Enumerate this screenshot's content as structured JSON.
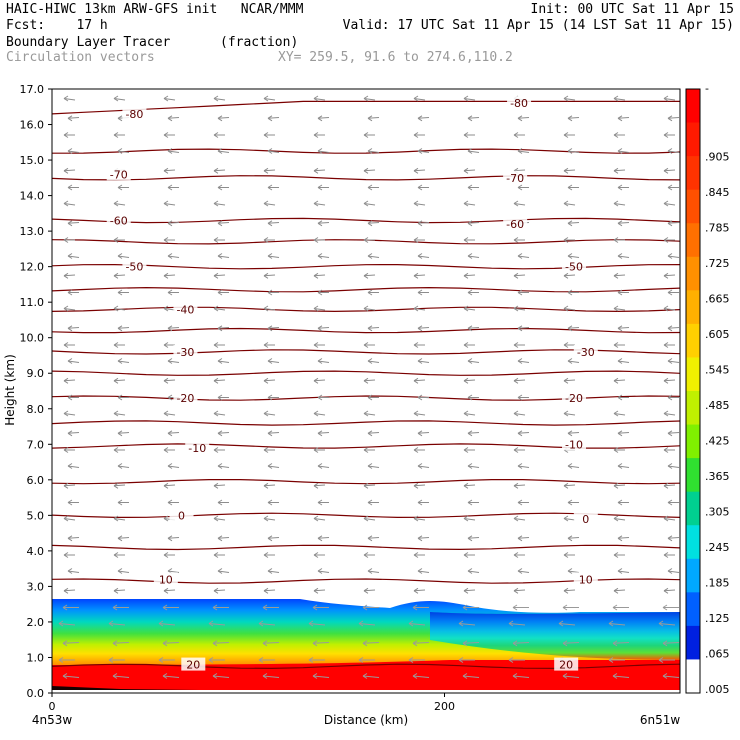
{
  "header": {
    "line1_left": "HAIC-HIWC 13km ARW-GFS init   NCAR/MMM",
    "line1_right": "Init: 00 UTC Sat 11 Apr 15",
    "line2_left": "Fcst:    17 h",
    "line2_right": "Valid: 17 UTC Sat 11 Apr 15 (14 LST Sat 11 Apr 15)",
    "field_name": "Boundary Layer Tracer",
    "field_units": "(fraction)",
    "vector_label": "Circulation vectors",
    "xy_label": "XY= 259.5, 91.6 to 274.6,110.2"
  },
  "chart_data": {
    "type": "heatmap",
    "ylabel": "Height (km)",
    "xlabel": "Distance (km)",
    "x_left_label": "4n53w",
    "x_right_label": "6n51w",
    "xlim": [
      0,
      320
    ],
    "ylim": [
      0,
      17
    ],
    "xticks": [
      "0",
      "200"
    ],
    "xtick_values": [
      0,
      200
    ],
    "yticks": [
      "0.0",
      "1.0",
      "2.0",
      "3.0",
      "4.0",
      "5.0",
      "6.0",
      "7.0",
      "8.0",
      "9.0",
      "10.0",
      "11.0",
      "12.0",
      "13.0",
      "14.0",
      "15.0",
      "16.0",
      "17.0"
    ],
    "colorbar": {
      "labels": [
        "-",
        ".905",
        ".845",
        ".785",
        ".725",
        ".665",
        ".605",
        ".545",
        ".485",
        ".425",
        ".365",
        ".305",
        ".245",
        ".185",
        ".125",
        ".065",
        ".005"
      ],
      "colors": [
        "#ff0000",
        "#ff1a00",
        "#ff3300",
        "#ff5000",
        "#ff7000",
        "#ff9000",
        "#ffb000",
        "#ffd000",
        "#f0f000",
        "#c0f000",
        "#80f000",
        "#30e030",
        "#00d090",
        "#00e0e0",
        "#00a8ff",
        "#0060ff",
        "#0020e0",
        "#ffffff"
      ]
    },
    "contour_labels": [
      {
        "text": "-80",
        "x": 42,
        "y": 16.3
      },
      {
        "text": "-80",
        "x": 238,
        "y": 16.6
      },
      {
        "text": "-70",
        "x": 34,
        "y": 14.6
      },
      {
        "text": "-70",
        "x": 236,
        "y": 14.5
      },
      {
        "text": "-60",
        "x": 34,
        "y": 13.3
      },
      {
        "text": "-60",
        "x": 236,
        "y": 13.2
      },
      {
        "text": "-50",
        "x": 42,
        "y": 12.0
      },
      {
        "text": "-50",
        "x": 266,
        "y": 12.0
      },
      {
        "text": "-40",
        "x": 68,
        "y": 10.8
      },
      {
        "text": "-30",
        "x": 68,
        "y": 9.6
      },
      {
        "text": "-30",
        "x": 272,
        "y": 9.6
      },
      {
        "text": "-20",
        "x": 68,
        "y": 8.3
      },
      {
        "text": "-20",
        "x": 266,
        "y": 8.3
      },
      {
        "text": "-10",
        "x": 74,
        "y": 6.9
      },
      {
        "text": "-10",
        "x": 266,
        "y": 7.0
      },
      {
        "text": "0",
        "x": 66,
        "y": 5.0
      },
      {
        "text": "0",
        "x": 272,
        "y": 4.9
      },
      {
        "text": "10",
        "x": 58,
        "y": 3.2
      },
      {
        "text": "10",
        "x": 272,
        "y": 3.2
      },
      {
        "text": "20",
        "x": 72,
        "y": 0.8
      },
      {
        "text": "20",
        "x": 262,
        "y": 0.8
      }
    ]
  }
}
